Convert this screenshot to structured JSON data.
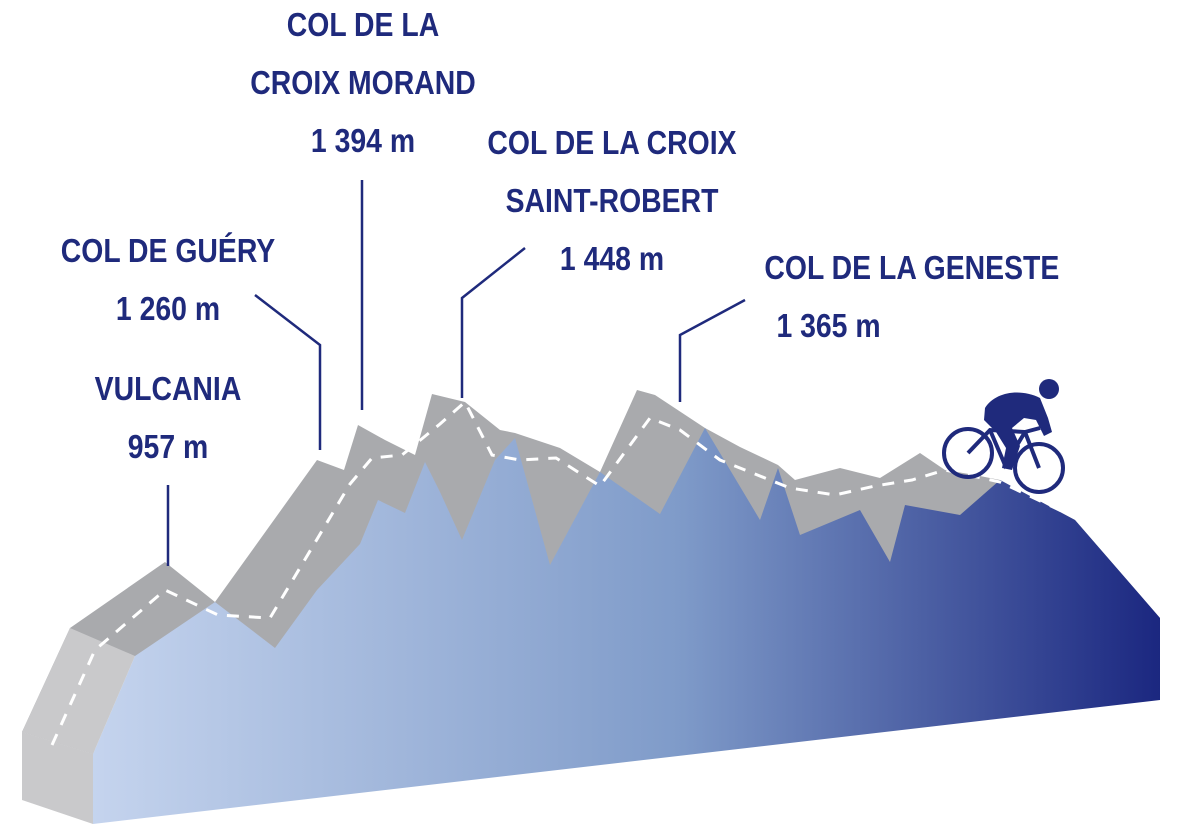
{
  "colors": {
    "text": "#1f2a7c",
    "leader_line": "#1f2a7c",
    "road_top": "#a9aaad",
    "road_side": "#c9c9cb",
    "road_dash": "#ffffff",
    "gradient_start": "#c5d4ee",
    "gradient_end": "#1b2780",
    "cyclist": "#1f2a7c"
  },
  "passes": [
    {
      "name_lines": [
        "VULCANIA"
      ],
      "altitude": "957 m"
    },
    {
      "name_lines": [
        "COL DE GUÉRY"
      ],
      "altitude": "1 260 m"
    },
    {
      "name_lines": [
        "COL DE LA",
        "CROIX MORAND"
      ],
      "altitude": "1 394 m"
    },
    {
      "name_lines": [
        "COL DE LA CROIX",
        "SAINT-ROBERT"
      ],
      "altitude": "1 448 m"
    },
    {
      "name_lines": [
        "COL DE LA GENESTE"
      ],
      "altitude": "1 365 m"
    }
  ],
  "cyclist_icon": "cyclist-icon"
}
